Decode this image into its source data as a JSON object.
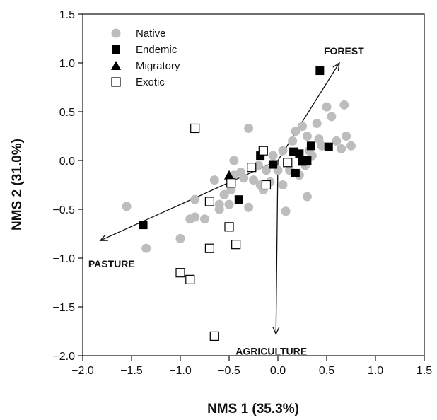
{
  "chart_data": {
    "type": "scatter",
    "xlabel": "NMS 1 (35.3%)",
    "ylabel": "NMS 2 (31.0%)",
    "xlim": [
      -2.0,
      1.5
    ],
    "ylim": [
      -2.0,
      1.5
    ],
    "xticks": [
      "−2.0",
      "−1.5",
      "−1.0",
      "−0.5",
      "0.0",
      "0.5",
      "1.0",
      "1.5"
    ],
    "yticks": [
      "−2.0",
      "−1.5",
      "−1.0",
      "−0.5",
      "0.0",
      "0.5",
      "1.0",
      "1.5"
    ],
    "grid": false,
    "legend_position": "top-left",
    "series": [
      {
        "name": "Native",
        "marker": "circle",
        "color": "#bdbdbd",
        "points": [
          [
            -1.55,
            -0.47
          ],
          [
            -1.35,
            -0.9
          ],
          [
            -1.0,
            -0.8
          ],
          [
            -0.9,
            -0.6
          ],
          [
            -0.85,
            -0.58
          ],
          [
            -0.85,
            -0.4
          ],
          [
            -0.75,
            -0.6
          ],
          [
            -0.65,
            -0.2
          ],
          [
            -0.6,
            -0.45
          ],
          [
            -0.6,
            -0.5
          ],
          [
            -0.55,
            -0.35
          ],
          [
            -0.5,
            -0.45
          ],
          [
            -0.48,
            -0.3
          ],
          [
            -0.45,
            0.0
          ],
          [
            -0.45,
            -0.15
          ],
          [
            -0.38,
            -0.12
          ],
          [
            -0.35,
            -0.18
          ],
          [
            -0.3,
            0.33
          ],
          [
            -0.3,
            -0.48
          ],
          [
            -0.25,
            -0.2
          ],
          [
            -0.2,
            -0.05
          ],
          [
            -0.18,
            -0.25
          ],
          [
            -0.15,
            -0.3
          ],
          [
            -0.12,
            -0.1
          ],
          [
            -0.08,
            -0.22
          ],
          [
            -0.05,
            0.05
          ],
          [
            0.0,
            -0.1
          ],
          [
            0.05,
            0.1
          ],
          [
            0.05,
            -0.25
          ],
          [
            0.08,
            -0.52
          ],
          [
            0.12,
            -0.1
          ],
          [
            0.15,
            0.2
          ],
          [
            0.18,
            0.3
          ],
          [
            0.22,
            -0.15
          ],
          [
            0.25,
            0.35
          ],
          [
            0.28,
            -0.05
          ],
          [
            0.3,
            0.25
          ],
          [
            0.3,
            -0.37
          ],
          [
            0.32,
            0.1
          ],
          [
            0.35,
            0.05
          ],
          [
            0.4,
            0.38
          ],
          [
            0.42,
            0.22
          ],
          [
            0.45,
            0.15
          ],
          [
            0.5,
            0.55
          ],
          [
            0.55,
            0.45
          ],
          [
            0.6,
            0.2
          ],
          [
            0.65,
            0.12
          ],
          [
            0.68,
            0.57
          ],
          [
            0.7,
            0.25
          ],
          [
            0.75,
            0.15
          ]
        ]
      },
      {
        "name": "Endemic",
        "marker": "square",
        "color": "#000000",
        "points": [
          [
            -1.38,
            -0.66
          ],
          [
            -0.4,
            -0.4
          ],
          [
            -0.18,
            0.05
          ],
          [
            -0.05,
            -0.04
          ],
          [
            0.16,
            0.09
          ],
          [
            0.18,
            -0.13
          ],
          [
            0.22,
            0.07
          ],
          [
            0.25,
            -0.01
          ],
          [
            0.3,
            0.0
          ],
          [
            0.34,
            0.15
          ],
          [
            0.43,
            0.92
          ],
          [
            0.52,
            0.14
          ]
        ]
      },
      {
        "name": "Migratory",
        "marker": "triangle",
        "color": "#000000",
        "points": [
          [
            -0.5,
            -0.15
          ]
        ]
      },
      {
        "name": "Exotic",
        "marker": "open-square",
        "color": "#000000",
        "points": [
          [
            -0.85,
            0.33
          ],
          [
            -1.0,
            -1.15
          ],
          [
            -0.9,
            -1.22
          ],
          [
            -0.7,
            -0.42
          ],
          [
            -0.7,
            -0.9
          ],
          [
            -0.5,
            -0.68
          ],
          [
            -0.48,
            -0.23
          ],
          [
            -0.43,
            -0.86
          ],
          [
            -0.27,
            -0.07
          ],
          [
            -0.15,
            0.1
          ],
          [
            -0.12,
            -0.25
          ],
          [
            0.1,
            -0.02
          ],
          [
            -0.65,
            -1.8
          ]
        ]
      }
    ],
    "vectors": [
      {
        "label": "FOREST",
        "from": [
          0.0,
          0.0
        ],
        "to": [
          0.63,
          1.0
        ]
      },
      {
        "label": "PASTURE",
        "from": [
          0.0,
          0.0
        ],
        "to": [
          -1.82,
          -0.82
        ]
      },
      {
        "label": "AGRICULTURE",
        "from": [
          0.0,
          0.0
        ],
        "to": [
          -0.02,
          -1.78
        ]
      }
    ]
  }
}
